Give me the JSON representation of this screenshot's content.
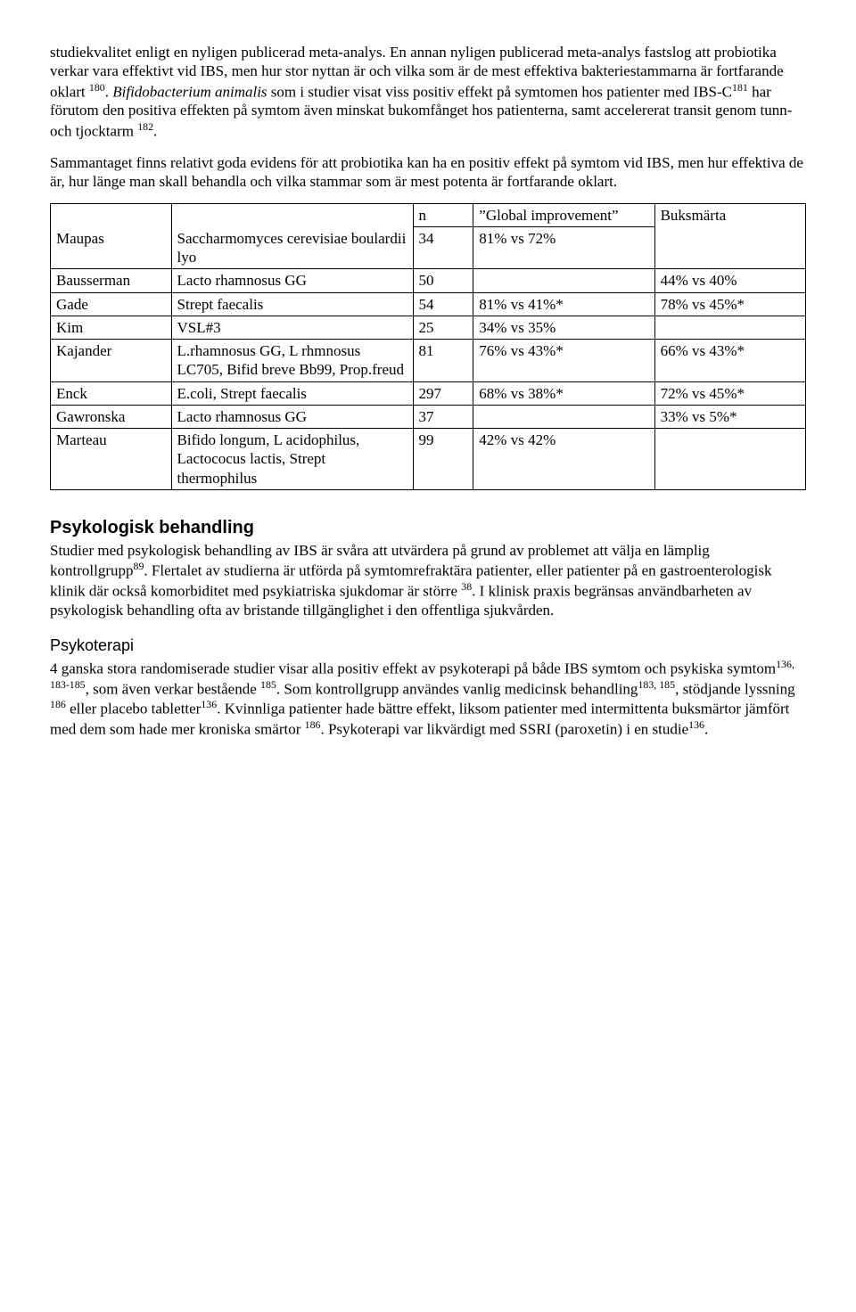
{
  "paragraphs": {
    "p1a": "studiekvalitet enligt en nyligen publicerad meta-analys. En annan nyligen publicerad meta-analys fastslog att probiotika verkar vara effektivt vid IBS, men hur stor nyttan är och vilka som är de mest effektiva bakteriestammarna är fortfarande oklart ",
    "p1_ref1": "180",
    "p1b": ". ",
    "p1_italic": "Bifidobacterium animalis",
    "p1c": " som i studier visat viss positiv effekt på symtomen hos patienter med IBS-C",
    "p1_ref2": "181",
    "p1d": " har förutom den positiva effekten på symtom även minskat bukomfånget hos patienterna, samt accelererat transit genom tunn- och tjocktarm ",
    "p1_ref3": "182",
    "p1e": ".",
    "p2": "Sammantaget finns relativt goda evidens för att probiotika kan ha en positiv effekt på symtom vid IBS, men hur effektiva de är, hur länge man skall behandla och vilka stammar som är mest potenta är fortfarande oklart."
  },
  "table": {
    "headers": {
      "n": "n",
      "global": "Global improvement",
      "pain": "Buksmärta"
    },
    "rows": [
      {
        "author": "Maupas",
        "probiotic": "Saccharmomyces cerevisiae boulardii lyo",
        "n": "34",
        "global": "81% vs 72%",
        "pain": ""
      },
      {
        "author": "Bausserman",
        "probiotic": "Lacto rhamnosus GG",
        "n": "50",
        "global": "",
        "pain": "44% vs 40%"
      },
      {
        "author": "Gade",
        "probiotic": "Strept faecalis",
        "n": "54",
        "global": "81% vs 41%*",
        "pain": "78% vs 45%*"
      },
      {
        "author": "Kim",
        "probiotic": "VSL#3",
        "n": "25",
        "global": "34% vs 35%",
        "pain": ""
      },
      {
        "author": "Kajander",
        "probiotic": "L.rhamnosus GG, L rhmnosus LC705, Bifid breve Bb99, Prop.freud",
        "n": "81",
        "global": "76% vs 43%*",
        "pain": "66% vs 43%*"
      },
      {
        "author": "Enck",
        "probiotic": "E.coli, Strept faecalis",
        "n": "297",
        "global": "68% vs 38%*",
        "pain": "72% vs 45%*"
      },
      {
        "author": "Gawronska",
        "probiotic": "Lacto rhamnosus GG",
        "n": "37",
        "global": "",
        "pain": "33% vs 5%*"
      },
      {
        "author": "Marteau",
        "probiotic": "Bifido longum, L acidophilus, Lactococus lactis, Strept thermophilus",
        "n": "99",
        "global": "42% vs 42%",
        "pain": ""
      }
    ]
  },
  "section2": {
    "title": "Psykologisk behandling",
    "p1a": "Studier med psykologisk behandling av IBS är svåra att utvärdera på grund av problemet att välja en lämplig kontrollgrupp",
    "ref1": "89",
    "p1b": ". Flertalet av studierna är utförda på symtomrefraktära patienter, eller patienter på en gastroenterologisk klinik där också komorbiditet med psykiatriska sjukdomar är större ",
    "ref2": "38",
    "p1c": ". I klinisk praxis begränsas användbarheten av psykologisk behandling ofta av bristande tillgänglighet i den offentliga sjukvården."
  },
  "section3": {
    "title": "Psykoterapi",
    "p1a": "4 ganska stora randomiserade studier visar alla positiv effekt av psykoterapi på både IBS symtom och psykiska symtom",
    "ref1": "136, 183-185",
    "p1b": ", som även verkar bestående ",
    "ref2": "185",
    "p1c": ". Som kontrollgrupp användes vanlig medicinsk behandling",
    "ref3": "183, 185",
    "p1d": ", stödjande lyssning ",
    "ref4": "186",
    "p1e": " eller placebo tabletter",
    "ref5": "136",
    "p1f": ". Kvinnliga patienter hade bättre effekt, liksom patienter med intermittenta buksmärtor jämfört med dem som hade mer kroniska smärtor ",
    "ref6": "186",
    "p1g": ". Psykoterapi var likvärdigt med SSRI (paroxetin) i en studie",
    "ref7": "136",
    "p1h": "."
  }
}
